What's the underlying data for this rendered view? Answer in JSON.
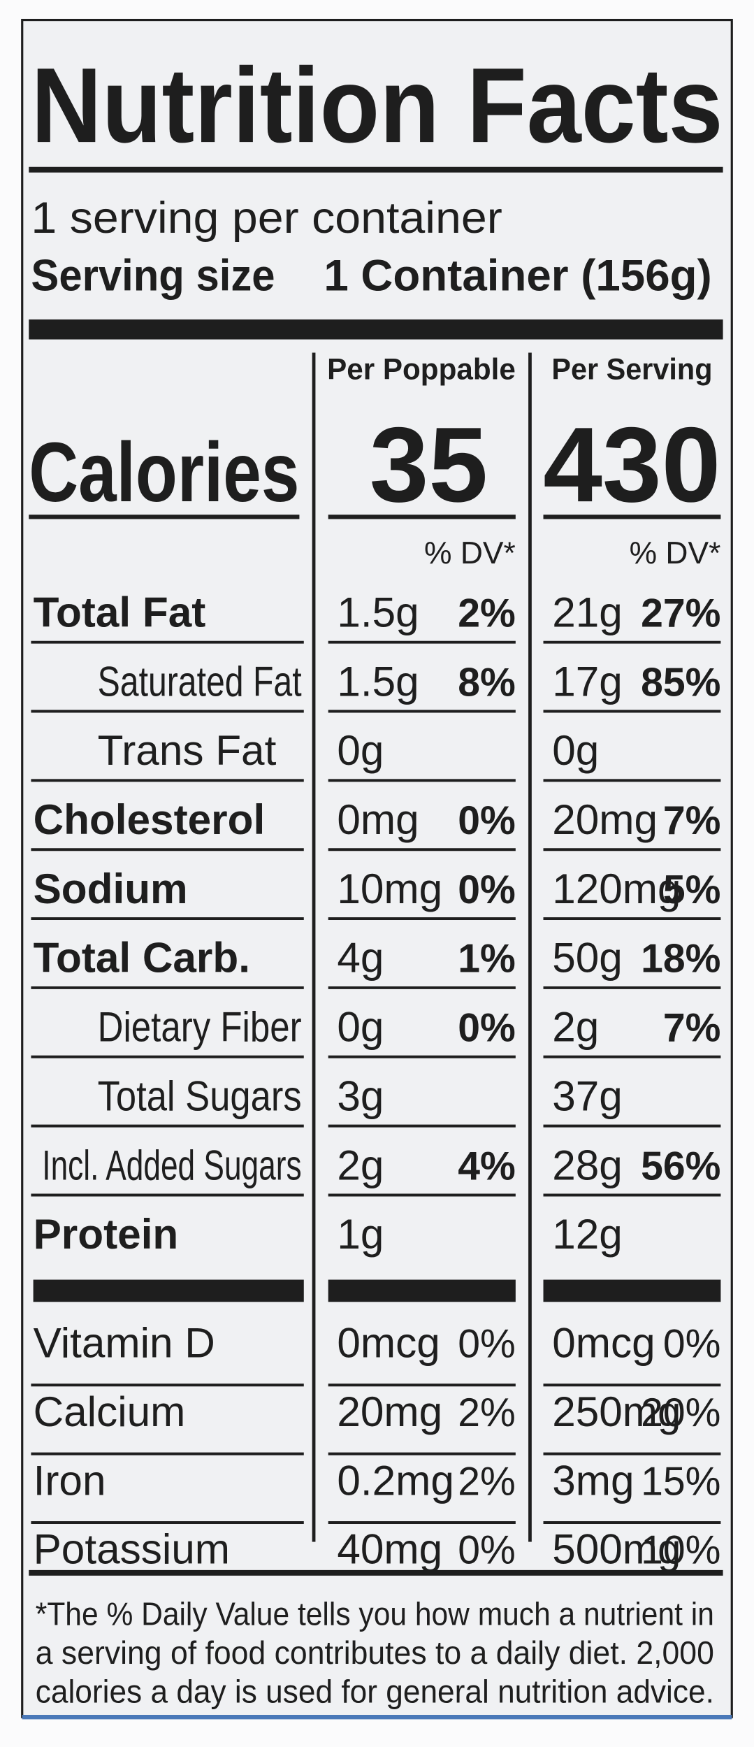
{
  "title": "Nutrition Facts",
  "servings_per_container": "1 serving per container",
  "serving_size": {
    "label": "Serving size",
    "value": "1 Container (156g)"
  },
  "columns": [
    "Per Poppable",
    "Per Serving"
  ],
  "calories": {
    "label": "Calories",
    "values": [
      "35",
      "430"
    ]
  },
  "dv_header": [
    "% DV*",
    "% DV*"
  ],
  "nutrients": [
    {
      "name": "Total Fat",
      "bold": true,
      "indent": false,
      "poppable": {
        "amount": "1.5g",
        "dv": "2%"
      },
      "serving": {
        "amount": "21g",
        "dv": "27%"
      }
    },
    {
      "name": "Saturated Fat",
      "bold": false,
      "indent": true,
      "poppable": {
        "amount": "1.5g",
        "dv": "8%"
      },
      "serving": {
        "amount": "17g",
        "dv": "85%"
      }
    },
    {
      "name": "Trans Fat",
      "bold": false,
      "indent": true,
      "poppable": {
        "amount": "0g",
        "dv": null
      },
      "serving": {
        "amount": "0g",
        "dv": null
      }
    },
    {
      "name": "Cholesterol",
      "bold": true,
      "indent": false,
      "poppable": {
        "amount": "0mg",
        "dv": "0%"
      },
      "serving": {
        "amount": "20mg",
        "dv": "7%"
      }
    },
    {
      "name": "Sodium",
      "bold": true,
      "indent": false,
      "poppable": {
        "amount": "10mg",
        "dv": "0%"
      },
      "serving": {
        "amount": "120mg",
        "dv": "5%"
      }
    },
    {
      "name": "Total Carb.",
      "bold": true,
      "indent": false,
      "poppable": {
        "amount": "4g",
        "dv": "1%"
      },
      "serving": {
        "amount": "50g",
        "dv": "18%"
      }
    },
    {
      "name": "Dietary Fiber",
      "bold": false,
      "indent": true,
      "poppable": {
        "amount": "0g",
        "dv": "0%"
      },
      "serving": {
        "amount": "2g",
        "dv": "7%"
      }
    },
    {
      "name": "Total Sugars",
      "bold": false,
      "indent": true,
      "poppable": {
        "amount": "3g",
        "dv": null
      },
      "serving": {
        "amount": "37g",
        "dv": null
      }
    },
    {
      "name": "Incl. Added Sugars",
      "bold": false,
      "indent": false,
      "poppable": {
        "amount": "2g",
        "dv": "4%"
      },
      "serving": {
        "amount": "28g",
        "dv": "56%"
      }
    },
    {
      "name": "Protein",
      "bold": true,
      "indent": false,
      "poppable": {
        "amount": "1g",
        "dv": null
      },
      "serving": {
        "amount": "12g",
        "dv": null
      }
    }
  ],
  "vitamins": [
    {
      "name": "Vitamin D",
      "poppable": {
        "amount": "0mcg",
        "dv": "0%"
      },
      "serving": {
        "amount": "0mcg",
        "dv": "0%"
      }
    },
    {
      "name": "Calcium",
      "poppable": {
        "amount": "20mg",
        "dv": "2%"
      },
      "serving": {
        "amount": "250mg",
        "dv": "20%"
      }
    },
    {
      "name": "Iron",
      "poppable": {
        "amount": "0.2mg",
        "dv": "2%"
      },
      "serving": {
        "amount": "3mg",
        "dv": "15%"
      }
    },
    {
      "name": "Potassium",
      "poppable": {
        "amount": "40mg",
        "dv": "0%"
      },
      "serving": {
        "amount": "500mg",
        "dv": "10%"
      }
    }
  ],
  "footnote": [
    "*The % Daily Value tells you how much a nutrient in",
    "a serving of food contributes to a daily diet. 2,000",
    "calories a day is used for general nutrition advice."
  ]
}
